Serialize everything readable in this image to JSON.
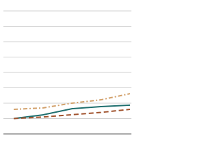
{
  "chart_data": {
    "type": "line",
    "categories": [
      null,
      null,
      null,
      null,
      null
    ],
    "series": [
      {
        "color": "#1f6f6f",
        "dash": "solid",
        "values": [
          10,
          12.4,
          16.4,
          17.8,
          18.7
        ]
      },
      {
        "color": "#a0522d",
        "dash": "dashed",
        "values": [
          10,
          11,
          12.5,
          14,
          16
        ]
      },
      {
        "color": "#d2a06a",
        "dash": "dashdot",
        "values": [
          16,
          16.9,
          20,
          22.2,
          26.2
        ]
      }
    ],
    "ylim": [
      0,
      80
    ],
    "yticks": [
      0,
      10,
      20,
      30,
      40,
      50,
      60,
      70,
      80
    ],
    "grid": true
  }
}
